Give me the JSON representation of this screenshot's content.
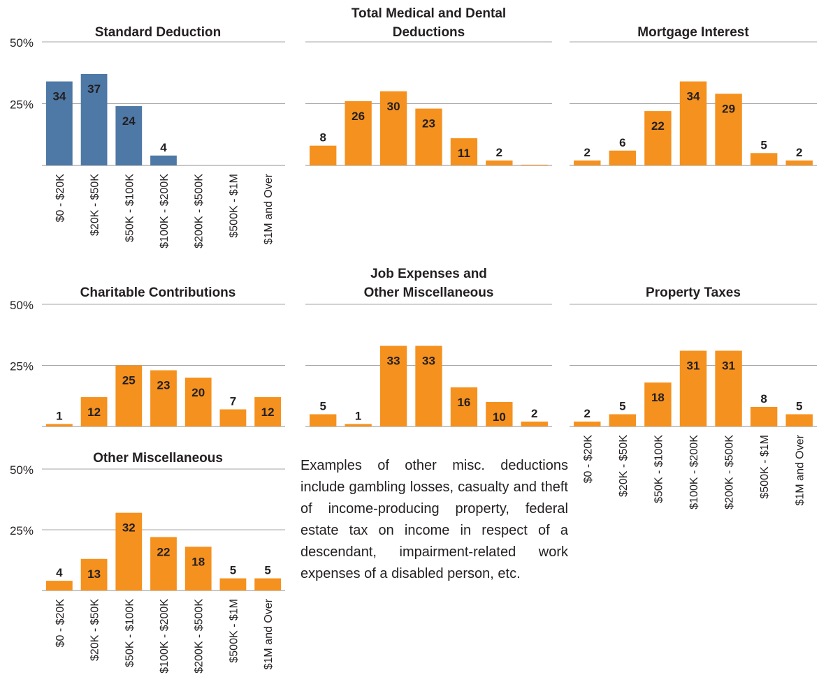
{
  "colors": {
    "standard": "#4e78a5",
    "itemized": "#f5911e",
    "grid": "#a6a6a6",
    "text": "#231f20"
  },
  "y_ticks": [
    "50%",
    "25%"
  ],
  "x_categories": [
    "$0 - $20K",
    "$20K - $50K",
    "$50K - $100K",
    "$100K - $200K",
    "$200K - $500K",
    "$500K - $1M",
    "$1M and Over"
  ],
  "note_text": "Examples of other misc. deductions include gambling losses, casualty and theft of income-producing property, federal estate tax on income in respect of a descendant, impairment-related work expenses of a disabled person, etc.",
  "chart_data": [
    {
      "type": "bar",
      "title": "Standard Deduction",
      "color": "standard",
      "categories": [
        "$0 - $20K",
        "$20K - $50K",
        "$50K - $100K",
        "$100K - $200K",
        "$200K - $500K",
        "$500K - $1M",
        "$1M and Over"
      ],
      "values": [
        34,
        37,
        24,
        4,
        0,
        0,
        0
      ],
      "labels": [
        "34",
        "37",
        "24",
        "4",
        "",
        "",
        ""
      ],
      "ylim": [
        0,
        50
      ],
      "y_ticks": [
        "50%",
        "25%"
      ],
      "grid": true
    },
    {
      "type": "bar",
      "title": "Total Medical and Dental Deductions",
      "color": "itemized",
      "categories": [
        "$0 - $20K",
        "$20K - $50K",
        "$50K - $100K",
        "$100K - $200K",
        "$200K - $500K",
        "$500K - $1M",
        "$1M and Over"
      ],
      "values": [
        8,
        26,
        30,
        23,
        11,
        2,
        0.3
      ],
      "labels": [
        "8",
        "26",
        "30",
        "23",
        "11",
        "2",
        ""
      ],
      "ylim": [
        0,
        50
      ],
      "grid": true
    },
    {
      "type": "bar",
      "title": "Mortgage Interest",
      "color": "itemized",
      "categories": [
        "$0 - $20K",
        "$20K - $50K",
        "$50K - $100K",
        "$100K - $200K",
        "$200K - $500K",
        "$500K - $1M",
        "$1M and Over"
      ],
      "values": [
        2,
        6,
        22,
        34,
        29,
        5,
        2
      ],
      "labels": [
        "2",
        "6",
        "22",
        "34",
        "29",
        "5",
        "2"
      ],
      "ylim": [
        0,
        50
      ],
      "grid": true
    },
    {
      "type": "bar",
      "title": "Charitable Contributions",
      "color": "itemized",
      "categories": [
        "$0 - $20K",
        "$20K - $50K",
        "$50K - $100K",
        "$100K - $200K",
        "$200K - $500K",
        "$500K - $1M",
        "$1M and Over"
      ],
      "values": [
        1,
        12,
        25,
        23,
        20,
        7,
        12
      ],
      "labels": [
        "1",
        "12",
        "25",
        "23",
        "20",
        "7",
        "12"
      ],
      "ylim": [
        0,
        50
      ],
      "y_ticks": [
        "50%",
        "25%"
      ],
      "grid": true
    },
    {
      "type": "bar",
      "title": "Job Expenses and Other Miscellaneous",
      "color": "itemized",
      "categories": [
        "$0 - $20K",
        "$20K - $50K",
        "$50K - $100K",
        "$100K - $200K",
        "$200K - $500K",
        "$500K - $1M",
        "$1M and Over"
      ],
      "values": [
        5,
        1,
        33,
        33,
        16,
        10,
        2
      ],
      "labels": [
        "5",
        "1",
        "33",
        "33",
        "16",
        "10",
        "2"
      ],
      "ylim": [
        0,
        50
      ],
      "grid": true
    },
    {
      "type": "bar",
      "title": "Property Taxes",
      "color": "itemized",
      "categories": [
        "$0 - $20K",
        "$20K - $50K",
        "$50K - $100K",
        "$100K - $200K",
        "$200K - $500K",
        "$500K - $1M",
        "$1M and Over"
      ],
      "values": [
        2,
        5,
        18,
        31,
        31,
        8,
        5
      ],
      "labels": [
        "2",
        "5",
        "18",
        "31",
        "31",
        "8",
        "5"
      ],
      "ylim": [
        0,
        50
      ],
      "grid": true
    },
    {
      "type": "bar",
      "title": "Other Miscellaneous",
      "color": "itemized",
      "categories": [
        "$0 - $20K",
        "$20K - $50K",
        "$50K - $100K",
        "$100K - $200K",
        "$200K - $500K",
        "$500K - $1M",
        "$1M and Over"
      ],
      "values": [
        4,
        13,
        32,
        22,
        18,
        5,
        5
      ],
      "labels": [
        "4",
        "13",
        "32",
        "22",
        "18",
        "5",
        "5"
      ],
      "ylim": [
        0,
        50
      ],
      "y_ticks": [
        "50%",
        "25%"
      ],
      "grid": true
    }
  ]
}
